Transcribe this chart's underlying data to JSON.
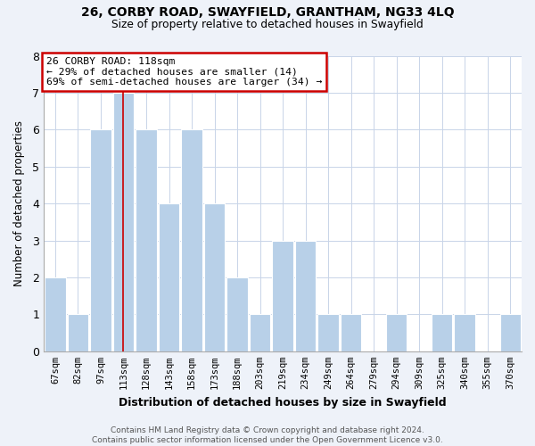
{
  "title": "26, CORBY ROAD, SWAYFIELD, GRANTHAM, NG33 4LQ",
  "subtitle": "Size of property relative to detached houses in Swayfield",
  "xlabel": "Distribution of detached houses by size in Swayfield",
  "ylabel": "Number of detached properties",
  "bar_labels": [
    "67sqm",
    "82sqm",
    "97sqm",
    "113sqm",
    "128sqm",
    "143sqm",
    "158sqm",
    "173sqm",
    "188sqm",
    "203sqm",
    "219sqm",
    "234sqm",
    "249sqm",
    "264sqm",
    "279sqm",
    "294sqm",
    "309sqm",
    "325sqm",
    "340sqm",
    "355sqm",
    "370sqm"
  ],
  "bar_values": [
    2,
    1,
    6,
    7,
    6,
    4,
    6,
    4,
    2,
    1,
    3,
    3,
    1,
    1,
    0,
    1,
    0,
    1,
    1,
    0,
    1
  ],
  "bar_color": "#b8d0e8",
  "marker_idx": 3,
  "ylim": [
    0,
    8
  ],
  "yticks": [
    0,
    1,
    2,
    3,
    4,
    5,
    6,
    7,
    8
  ],
  "annotation_title": "26 CORBY ROAD: 118sqm",
  "annotation_line1": "← 29% of detached houses are smaller (14)",
  "annotation_line2": "69% of semi-detached houses are larger (34) →",
  "footer1": "Contains HM Land Registry data © Crown copyright and database right 2024.",
  "footer2": "Contains public sector information licensed under the Open Government Licence v3.0.",
  "bg_color": "#eef2f9",
  "plot_bg_color": "#ffffff",
  "grid_color": "#c8d4e8"
}
